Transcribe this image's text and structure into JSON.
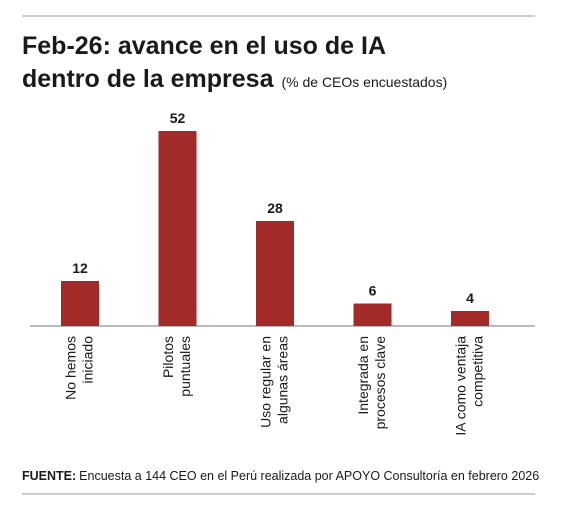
{
  "chart_data": {
    "type": "bar",
    "title": [
      "Feb-26: avance en el uso de IA",
      "dentro de la empresa"
    ],
    "subtitle": "(% de CEOs encuestados)",
    "categories": [
      [
        "No hemos",
        "iniciado"
      ],
      [
        "Pilotos",
        "puntuales"
      ],
      [
        "Uso regular en",
        "algunas áreas"
      ],
      [
        "Integrada en",
        "procesos clave"
      ],
      [
        "IA como ventaja",
        "competitiva"
      ]
    ],
    "values": [
      12,
      52,
      28,
      6,
      4
    ],
    "color": "#a22a28",
    "source_label": "FUENTE:",
    "source": "Encuesta a 144 CEO en el Perú realizada por APOYO Consultoría en febrero 2026"
  }
}
